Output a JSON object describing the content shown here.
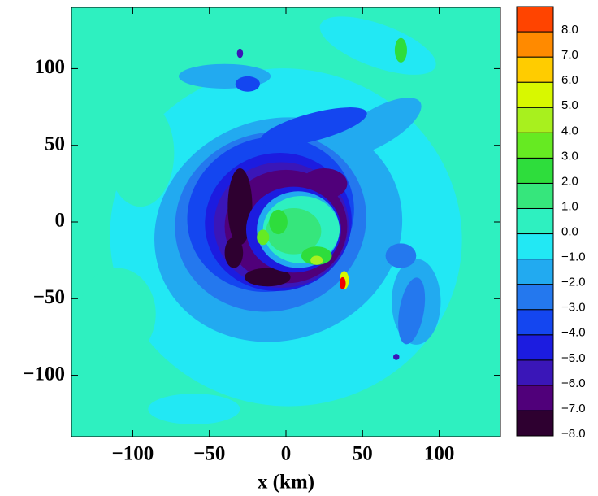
{
  "chart_data": {
    "type": "contour",
    "xlabel": "x (km)",
    "xlim": [
      -140,
      140
    ],
    "xticks": [
      {
        "value": -100,
        "label": "−100"
      },
      {
        "value": -50,
        "label": "−50"
      },
      0,
      50,
      100
    ],
    "ylim": [
      -140,
      140
    ],
    "yticks": [
      {
        "value": -100,
        "label": "−100"
      },
      {
        "value": -50,
        "label": "−50"
      },
      0,
      50,
      100
    ],
    "colorbar": {
      "levels": [
        -8,
        -7,
        -6,
        -5,
        -4,
        -3,
        -2,
        -1,
        0,
        1,
        2,
        3,
        4,
        5,
        6,
        7,
        8,
        9
      ],
      "colors": [
        "#2e0030",
        "#50007a",
        "#3a16b8",
        "#1c1ce0",
        "#1446f0",
        "#2478ee",
        "#22aaf0",
        "#22e8f4",
        "#2ef0c0",
        "#36e67c",
        "#2edd3c",
        "#66ea22",
        "#a8f01e",
        "#d8f800",
        "#ffcc00",
        "#ff8a00",
        "#ff4400",
        "#f00000"
      ],
      "ticks": [
        {
          "value": -8,
          "label": "−8.0"
        },
        {
          "value": -7,
          "label": "−7.0"
        },
        {
          "value": -6,
          "label": "−6.0"
        },
        {
          "value": -5,
          "label": "−5.0"
        },
        {
          "value": -4,
          "label": "−4.0"
        },
        {
          "value": -3,
          "label": "−3.0"
        },
        {
          "value": -2,
          "label": "−2.0"
        },
        {
          "value": -1,
          "label": "−1.0"
        },
        {
          "value": 0,
          "label": "0.0"
        },
        {
          "value": 1,
          "label": "1.0"
        },
        {
          "value": 2,
          "label": "2.0"
        },
        {
          "value": 3,
          "label": "3.0"
        },
        {
          "value": 4,
          "label": "4.0"
        },
        {
          "value": 5,
          "label": "5.0"
        },
        {
          "value": 6,
          "label": "6.0"
        },
        {
          "value": 7,
          "label": "7.0"
        },
        {
          "value": 8,
          "label": "8.0"
        }
      ]
    }
  }
}
